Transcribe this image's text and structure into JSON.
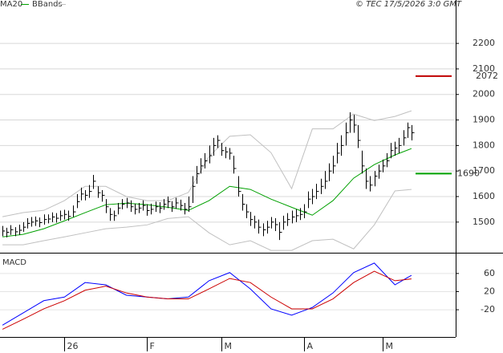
{
  "chart_data": {
    "type": "ohlc",
    "copyright": "© TEC 17/5/2026 3:0 GMT",
    "xlim": [
      -0.6,
      109.7
    ],
    "xticks": [
      {
        "value": 15,
        "label": "26"
      },
      {
        "value": 35,
        "label": "F"
      },
      {
        "value": 53,
        "label": "M"
      },
      {
        "value": 73,
        "label": "A"
      },
      {
        "value": 92,
        "label": "M"
      }
    ],
    "ylim": [
      1380,
      2370
    ],
    "yticks": [
      1500,
      1600,
      1700,
      1800,
      1900,
      2000,
      2100,
      2200
    ],
    "grid": true,
    "bar_color": "#000000",
    "bars": {
      "close": [
        1465,
        1460,
        1470,
        1462,
        1468,
        1480,
        1495,
        1500,
        1505,
        1498,
        1510,
        1512,
        1520,
        1515,
        1525,
        1530,
        1522,
        1540,
        1580,
        1610,
        1605,
        1620,
        1660,
        1615,
        1605,
        1560,
        1530,
        1525,
        1555,
        1570,
        1575,
        1560,
        1550,
        1555,
        1565,
        1545,
        1550,
        1560,
        1555,
        1570,
        1580,
        1560,
        1575,
        1565,
        1550,
        1560,
        1640,
        1690,
        1720,
        1740,
        1760,
        1800,
        1820,
        1780,
        1775,
        1770,
        1710,
        1620,
        1570,
        1540,
        1510,
        1500,
        1480,
        1470,
        1480,
        1500,
        1490,
        1460,
        1500,
        1510,
        1520,
        1525,
        1530,
        1540,
        1590,
        1600,
        1620,
        1640,
        1660,
        1700,
        1720,
        1770,
        1800,
        1850,
        1900,
        1880,
        1820,
        1720,
        1660,
        1645,
        1680,
        1700,
        1720,
        1740,
        1780,
        1790,
        1800,
        1830,
        1870,
        1850
      ],
      "high": [
        1485,
        1478,
        1488,
        1480,
        1490,
        1500,
        1515,
        1520,
        1522,
        1518,
        1530,
        1530,
        1538,
        1535,
        1545,
        1548,
        1545,
        1565,
        1610,
        1635,
        1625,
        1645,
        1685,
        1640,
        1625,
        1590,
        1555,
        1545,
        1575,
        1590,
        1595,
        1585,
        1572,
        1575,
        1585,
        1570,
        1572,
        1580,
        1578,
        1590,
        1600,
        1582,
        1595,
        1588,
        1575,
        1600,
        1680,
        1720,
        1750,
        1770,
        1800,
        1830,
        1840,
        1810,
        1795,
        1790,
        1760,
        1680,
        1610,
        1570,
        1540,
        1525,
        1510,
        1495,
        1505,
        1520,
        1515,
        1500,
        1525,
        1535,
        1545,
        1550,
        1555,
        1570,
        1620,
        1630,
        1650,
        1670,
        1700,
        1730,
        1760,
        1810,
        1840,
        1890,
        1930,
        1920,
        1880,
        1780,
        1710,
        1680,
        1700,
        1725,
        1745,
        1770,
        1810,
        1815,
        1830,
        1860,
        1890,
        1880
      ],
      "low": [
        1445,
        1440,
        1450,
        1445,
        1450,
        1462,
        1475,
        1482,
        1485,
        1480,
        1490,
        1495,
        1500,
        1498,
        1505,
        1510,
        1505,
        1520,
        1555,
        1585,
        1585,
        1595,
        1630,
        1595,
        1580,
        1535,
        1505,
        1505,
        1530,
        1550,
        1555,
        1540,
        1530,
        1535,
        1545,
        1525,
        1530,
        1540,
        1535,
        1548,
        1555,
        1540,
        1552,
        1545,
        1530,
        1540,
        1575,
        1650,
        1690,
        1710,
        1730,
        1760,
        1790,
        1760,
        1750,
        1745,
        1690,
        1600,
        1545,
        1515,
        1485,
        1475,
        1455,
        1445,
        1455,
        1475,
        1465,
        1430,
        1470,
        1485,
        1495,
        1500,
        1508,
        1515,
        1555,
        1570,
        1590,
        1610,
        1630,
        1660,
        1690,
        1730,
        1760,
        1800,
        1850,
        1850,
        1790,
        1690,
        1630,
        1620,
        1640,
        1670,
        1695,
        1715,
        1750,
        1760,
        1770,
        1800,
        1830,
        1820
      ]
    },
    "ma": {
      "name": "MA20",
      "color": "#00a000",
      "x": [
        0,
        5,
        10,
        15,
        20,
        25,
        30,
        35,
        40,
        45,
        50,
        55,
        60,
        65,
        70,
        75,
        80,
        85,
        90,
        95,
        99
      ],
      "values": [
        1442,
        1452,
        1474,
        1505,
        1537,
        1568,
        1574,
        1568,
        1558,
        1546,
        1584,
        1640,
        1628,
        1590,
        1558,
        1527,
        1584,
        1672,
        1725,
        1763,
        1788
      ]
    },
    "bbands": {
      "name": "BBands",
      "color": "#c0c0c0",
      "x": [
        0,
        5,
        10,
        15,
        20,
        25,
        30,
        35,
        40,
        45,
        50,
        55,
        60,
        65,
        70,
        75,
        80,
        85,
        90,
        95,
        99
      ],
      "upper": [
        1521,
        1537,
        1546,
        1584,
        1640,
        1640,
        1600,
        1584,
        1584,
        1616,
        1757,
        1836,
        1842,
        1772,
        1631,
        1865,
        1865,
        1923,
        1898,
        1914,
        1936
      ],
      "lower": [
        1411,
        1411,
        1427,
        1442,
        1458,
        1474,
        1480,
        1489,
        1514,
        1521,
        1458,
        1411,
        1427,
        1389,
        1389,
        1427,
        1433,
        1395,
        1489,
        1622,
        1628
      ]
    },
    "levels": [
      {
        "value": 2072,
        "color": "#c00000"
      },
      {
        "value": 1690,
        "color": "#00a000"
      }
    ],
    "macd": {
      "title": "MACD",
      "ylim": [
        -80,
        104
      ],
      "yticks": [
        60,
        20,
        -20
      ],
      "x": [
        0,
        5,
        10,
        15,
        20,
        25,
        30,
        35,
        40,
        45,
        50,
        55,
        60,
        65,
        70,
        75,
        80,
        85,
        90,
        95,
        99
      ],
      "series": [
        {
          "color": "#0000ff",
          "values": [
            -54,
            -27,
            0,
            8,
            40,
            35,
            12,
            8,
            4,
            8,
            44,
            62,
            26,
            -18,
            -32,
            -15,
            17,
            62,
            83,
            35,
            56
          ]
        },
        {
          "color": "#cc0000",
          "values": [
            -63,
            -41,
            -18,
            0,
            23,
            32,
            17,
            8,
            4,
            4,
            26,
            49,
            40,
            8,
            -18,
            -18,
            4,
            40,
            65,
            44,
            48
          ]
        }
      ]
    }
  }
}
